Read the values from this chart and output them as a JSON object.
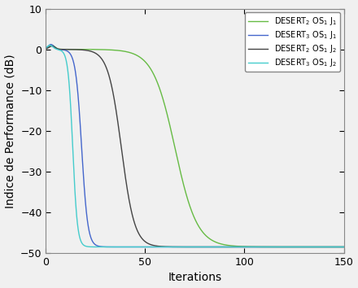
{
  "title": "",
  "xlabel": "Iterations",
  "ylabel": "Indice de Performance (dB)",
  "xlim": [
    0,
    150
  ],
  "ylim": [
    -50,
    10
  ],
  "yticks": [
    10,
    0,
    -10,
    -20,
    -30,
    -40,
    -50
  ],
  "xticks": [
    0,
    50,
    100,
    150
  ],
  "background_color": "#f0f0f0",
  "curves": [
    {
      "label": "DESERT$_2$ OS$_1$ J$_1$",
      "color": "#66bb44",
      "peak_x": 3.0,
      "peak_y": 1.0,
      "drop_start": 8.0,
      "drop_steep_k": 0.18,
      "drop_mid": 65.0,
      "y_floor": -48.5
    },
    {
      "label": "DESERT$_3$ OS$_1$ J$_1$",
      "color": "#4466cc",
      "peak_x": 2.5,
      "peak_y": 1.2,
      "drop_start": 5.0,
      "drop_steep_k": 0.65,
      "drop_mid": 18.0,
      "y_floor": -48.5
    },
    {
      "label": "DESERT$_2$ OS$_1$ J$_2$",
      "color": "#444444",
      "peak_x": 3.0,
      "peak_y": 0.8,
      "drop_start": 6.0,
      "drop_steep_k": 0.3,
      "drop_mid": 38.0,
      "y_floor": -48.5
    },
    {
      "label": "DESERT$_3$ OS$_1$ J$_2$",
      "color": "#44cccc",
      "peak_x": 2.0,
      "peak_y": 1.0,
      "drop_start": 4.0,
      "drop_steep_k": 0.85,
      "drop_mid": 13.5,
      "y_floor": -48.5
    }
  ]
}
